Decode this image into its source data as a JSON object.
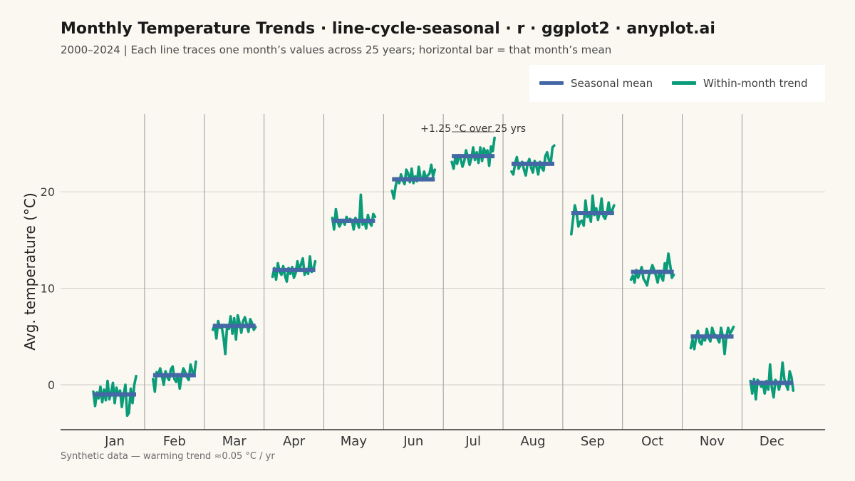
{
  "title": "Monthly Temperature Trends · line-cycle-seasonal · r · ggplot2 · anyplot.ai",
  "subtitle": "2000–2024  |  Each line traces one month’s values across 25 years; horizontal bar = that month’s mean",
  "caption": "Synthetic data — warming trend ≈0.05 °C / yr",
  "legend": {
    "mean_label": "Seasonal mean",
    "trend_label": "Within-month trend",
    "placement": "top-right"
  },
  "colors": {
    "background": "#FAF8F1",
    "mean": "#4467A5",
    "trend": "#0A9B78",
    "grid": "#D8D6CE",
    "separator": "#9A9A9A",
    "axis": "#333333"
  },
  "chart_data": {
    "type": "line",
    "xlabel": "",
    "ylabel": "Avg. temperature (°C)",
    "ylim": [
      -4.8,
      28.0
    ],
    "yticks": [
      0,
      10,
      20
    ],
    "grid": true,
    "annotation": {
      "text": "+1.25 °C over 25 yrs",
      "month": "Jul"
    },
    "years": [
      2000,
      2024
    ],
    "months": [
      {
        "name": "Jan",
        "mean": -1.0,
        "values": [
          -0.7,
          -2.2,
          -0.8,
          -1.4,
          -0.2,
          -1.8,
          -0.5,
          -1.6,
          0.4,
          -1.5,
          -0.8,
          0.2,
          -1.9,
          -0.3,
          -1.1,
          -0.6,
          -2.3,
          -1.0,
          0.0,
          -3.2,
          -2.9,
          -0.4,
          -1.9,
          0.0,
          0.9
        ]
      },
      {
        "name": "Feb",
        "mean": 1.0,
        "values": [
          0.6,
          -0.7,
          1.3,
          1.1,
          1.7,
          0.9,
          0.0,
          1.4,
          0.8,
          0.5,
          1.6,
          1.9,
          0.6,
          0.3,
          1.1,
          -0.4,
          0.9,
          1.7,
          1.3,
          0.8,
          0.5,
          2.1,
          1.4,
          0.9,
          2.4
        ]
      },
      {
        "name": "Mar",
        "mean": 6.1,
        "values": [
          5.7,
          6.2,
          4.8,
          6.6,
          5.9,
          6.0,
          4.9,
          3.2,
          6.1,
          5.8,
          7.1,
          5.3,
          6.9,
          4.7,
          7.2,
          6.4,
          5.4,
          6.6,
          7.0,
          6.3,
          5.5,
          6.8,
          6.4,
          5.7,
          6.0
        ]
      },
      {
        "name": "Apr",
        "mean": 11.9,
        "values": [
          11.2,
          12.1,
          10.9,
          12.6,
          11.7,
          11.4,
          12.3,
          11.3,
          10.7,
          12.1,
          11.5,
          12.2,
          11.1,
          11.6,
          12.8,
          11.9,
          12.5,
          13.1,
          11.4,
          12.0,
          11.5,
          13.3,
          11.7,
          12.0,
          12.8
        ]
      },
      {
        "name": "May",
        "mean": 17.0,
        "values": [
          17.3,
          16.1,
          18.2,
          16.9,
          16.4,
          16.8,
          17.1,
          16.6,
          17.4,
          16.9,
          17.2,
          17.0,
          16.1,
          17.3,
          16.8,
          16.3,
          19.7,
          16.6,
          17.1,
          16.2,
          17.6,
          16.8,
          16.5,
          17.7,
          17.4
        ]
      },
      {
        "name": "Jun",
        "mean": 21.3,
        "values": [
          20.1,
          19.3,
          20.6,
          21.4,
          20.9,
          21.8,
          21.2,
          20.8,
          22.3,
          21.9,
          21.0,
          22.4,
          20.9,
          21.6,
          21.1,
          22.6,
          21.4,
          21.2,
          22.1,
          21.4,
          21.7,
          21.9,
          22.8,
          21.6,
          22.3
        ]
      },
      {
        "name": "Jul",
        "mean": 23.7,
        "values": [
          23.1,
          22.4,
          23.6,
          22.9,
          23.8,
          23.4,
          22.6,
          23.2,
          24.3,
          23.6,
          22.8,
          23.5,
          24.6,
          23.3,
          24.1,
          23.0,
          24.6,
          23.2,
          24.5,
          24.0,
          24.3,
          22.7,
          24.7,
          24.2,
          25.6
        ]
      },
      {
        "name": "Aug",
        "mean": 22.9,
        "values": [
          22.1,
          21.8,
          22.9,
          23.6,
          22.4,
          22.8,
          23.1,
          22.3,
          21.7,
          22.9,
          23.4,
          22.5,
          22.0,
          23.2,
          22.6,
          21.8,
          23.1,
          22.5,
          22.2,
          23.7,
          24.1,
          23.3,
          22.9,
          24.6,
          24.8
        ]
      },
      {
        "name": "Sep",
        "mean": 17.8,
        "values": [
          15.6,
          17.2,
          18.6,
          17.8,
          16.4,
          16.9,
          17.0,
          16.5,
          19.1,
          17.4,
          17.8,
          16.9,
          19.6,
          17.6,
          18.3,
          17.1,
          17.9,
          19.3,
          17.5,
          17.2,
          17.8,
          18.9,
          17.7,
          18.1,
          18.6
        ]
      },
      {
        "name": "Oct",
        "mean": 11.7,
        "values": [
          10.9,
          11.3,
          10.6,
          11.9,
          11.1,
          11.6,
          12.2,
          11.0,
          10.7,
          10.3,
          11.3,
          11.8,
          12.4,
          11.9,
          11.3,
          10.6,
          11.8,
          11.2,
          10.8,
          12.6,
          12.0,
          13.6,
          12.4,
          11.1,
          11.4
        ]
      },
      {
        "name": "Nov",
        "mean": 5.0,
        "values": [
          3.8,
          4.7,
          3.7,
          4.9,
          5.6,
          4.4,
          4.2,
          5.0,
          4.6,
          5.8,
          4.9,
          4.5,
          5.9,
          5.3,
          5.1,
          4.8,
          4.4,
          5.9,
          5.0,
          3.2,
          5.0,
          5.9,
          5.3,
          5.6,
          6.0
        ]
      },
      {
        "name": "Dec",
        "mean": 0.2,
        "values": [
          0.4,
          -0.9,
          0.6,
          -1.5,
          0.5,
          0.3,
          -0.2,
          0.1,
          -0.9,
          0.4,
          -0.5,
          2.1,
          -0.3,
          -1.3,
          0.5,
          0.2,
          -0.5,
          0.3,
          2.3,
          0.6,
          0.0,
          -0.5,
          1.4,
          0.8,
          -0.6
        ]
      }
    ]
  }
}
